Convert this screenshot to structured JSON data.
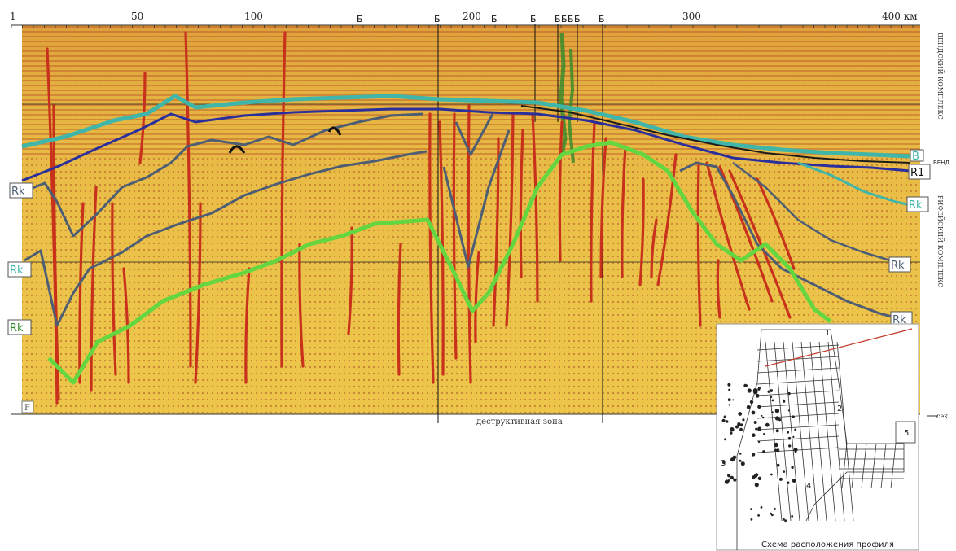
{
  "profile": {
    "top_axis": {
      "ticks": [
        "1",
        "50",
        "100",
        "200",
        "300",
        "400 км"
      ]
    },
    "right_caption_upper": "ВЕНДСКИЙ КОМПЛЕКС",
    "right_caption_lower": "РИФЕЙСКИЙ КОМПЛЕКС",
    "depth_unit": "сек",
    "bottom_label": "деструктивная зона",
    "corner_label": "F",
    "horizon_tags": {
      "b": "B",
      "r1": "R1",
      "rk_right_1": "Rk",
      "rk_right_2": "Rk",
      "rk_right_3": "Rk",
      "rk_left_1": "Rk",
      "rk_left_2": "Rk",
      "rk_left_3": "Rk",
      "vend": "ВЕНД"
    },
    "well_markers": [
      "Б",
      "Б",
      "Б",
      "Б",
      "Б",
      "Б",
      "Б",
      "Б",
      "Б"
    ],
    "colors": {
      "background": "#e9c341",
      "faults": "#c8311b",
      "horizon_teal": "#3fb6a9",
      "horizon_blue": "#2a2f9c",
      "horizon_gray": "#4d5e74",
      "horizon_green": "#64d640"
    }
  },
  "inset_map": {
    "caption": "Схема расположения профиля",
    "numbers": [
      "1",
      "2",
      "3",
      "4",
      "5"
    ]
  }
}
